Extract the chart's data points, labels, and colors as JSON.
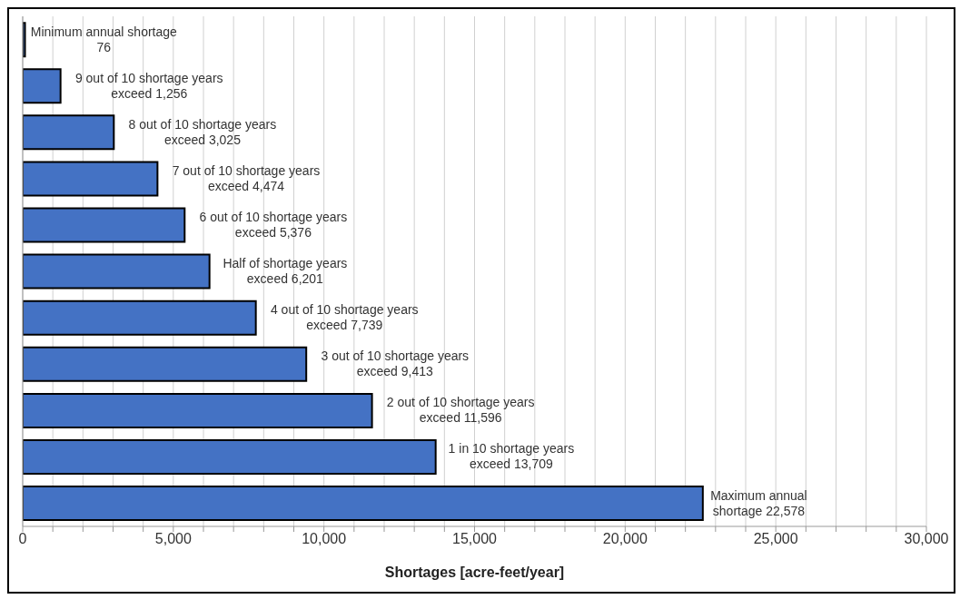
{
  "chart_data": {
    "type": "bar",
    "orientation": "horizontal",
    "xlabel": "Shortages [acre-feet/year]",
    "categories": [
      null,
      null,
      null,
      null,
      null,
      null,
      null,
      null,
      null,
      null,
      null
    ],
    "values": [
      76,
      1256,
      3025,
      4474,
      5376,
      6201,
      7739,
      9413,
      11596,
      13709,
      22578
    ],
    "value_labels": [
      "Minimum annual shortage\n76",
      "9 out of 10 shortage years\nexceed  1,256",
      "8 out of 10 shortage years\nexceed  3,025",
      "7 out of 10 shortage years\nexceed  4,474",
      "6 out of 10 shortage years\nexceed  5,376",
      "Half of shortage years\nexceed  6,201",
      "4 out of 10 shortage years\nexceed  7,739",
      "3 out of 10 shortage years\nexceed  9,413",
      "2 out of 10 shortage years\nexceed  11,596",
      "1 in 10 shortage years\nexceed  13,709",
      "Maximum annual\nshortage  22,578"
    ],
    "color": "#4472c4",
    "xlim": [
      0,
      30000
    ],
    "xticks": [
      0,
      {
        "value": 1000,
        "label": null
      },
      {
        "value": 2000,
        "label": null
      },
      {
        "value": 3000,
        "label": null
      },
      {
        "value": 4000,
        "label": null
      },
      {
        "value": 5000,
        "label": "5,000"
      },
      {
        "value": 6000,
        "label": null
      },
      {
        "value": 7000,
        "label": null
      },
      {
        "value": 8000,
        "label": null
      },
      {
        "value": 9000,
        "label": null
      },
      {
        "value": 10000,
        "label": "10,000"
      },
      {
        "value": 11000,
        "label": null
      },
      {
        "value": 12000,
        "label": null
      },
      {
        "value": 13000,
        "label": null
      },
      {
        "value": 14000,
        "label": null
      },
      {
        "value": 15000,
        "label": "15,000"
      },
      {
        "value": 16000,
        "label": null
      },
      {
        "value": 17000,
        "label": null
      },
      {
        "value": 18000,
        "label": null
      },
      {
        "value": 19000,
        "label": null
      },
      {
        "value": 20000,
        "label": "20,000"
      },
      {
        "value": 21000,
        "label": null
      },
      {
        "value": 22000,
        "label": null
      },
      {
        "value": 23000,
        "label": null
      },
      {
        "value": 24000,
        "label": null
      },
      {
        "value": 25000,
        "label": "25,000"
      },
      {
        "value": 26000,
        "label": null
      },
      {
        "value": 27000,
        "label": null
      },
      {
        "value": 28000,
        "label": null
      },
      {
        "value": 29000,
        "label": null
      },
      {
        "value": 30000,
        "label": "30,000"
      }
    ],
    "grid": "x",
    "tick_labels": "x"
  }
}
